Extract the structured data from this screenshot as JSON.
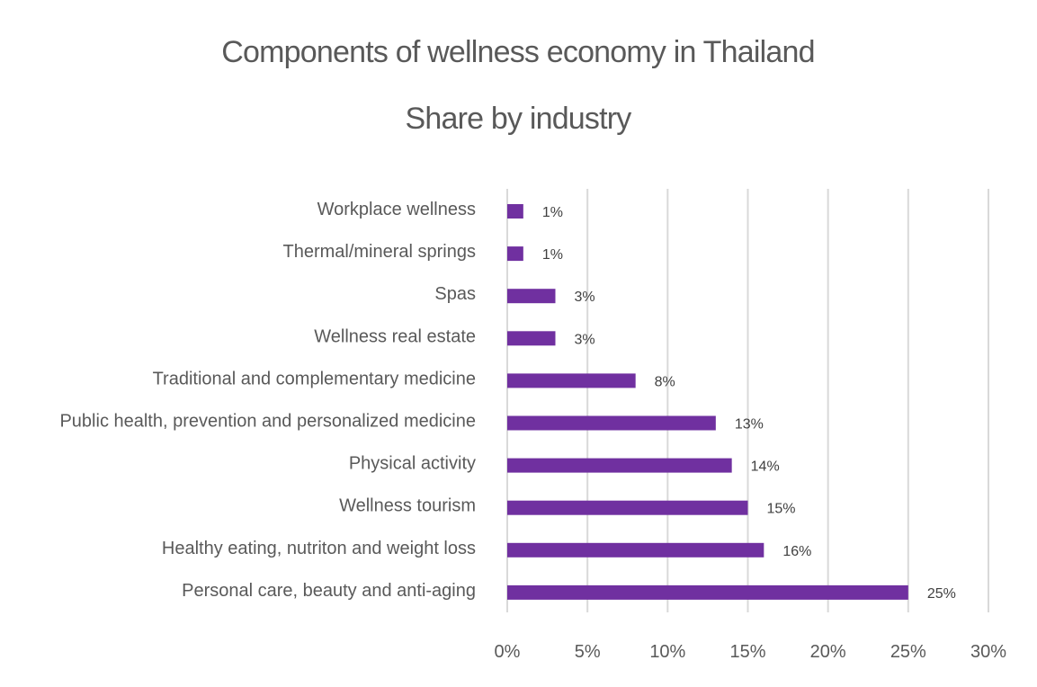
{
  "chart_data": {
    "type": "bar",
    "orientation": "horizontal",
    "title": "Components of wellness economy in Thailand",
    "subtitle": "Share by industry",
    "categories": [
      "Workplace wellness",
      "Thermal/mineral springs",
      "Spas",
      "Wellness real estate",
      "Traditional and complementary medicine",
      "Public health, prevention and personalized medicine",
      "Physical activity",
      "Wellness tourism",
      "Healthy eating, nutriton and weight loss",
      "Personal care, beauty and anti-aging"
    ],
    "values": [
      1,
      1,
      3,
      3,
      8,
      13,
      14,
      15,
      16,
      25
    ],
    "data_labels": [
      "1%",
      "1%",
      "3%",
      "3%",
      "8%",
      "13%",
      "14%",
      "15%",
      "16%",
      "25%"
    ],
    "xlim": [
      0,
      30
    ],
    "xticks": [
      0,
      5,
      10,
      15,
      20,
      25,
      30
    ],
    "xtick_labels": [
      "0%",
      "5%",
      "10%",
      "15%",
      "20%",
      "25%",
      "30%"
    ],
    "xlabel": "",
    "ylabel": "",
    "grid": "vertical",
    "legend": "none",
    "colors": {
      "bar": "#7030a0",
      "grid": "#d9d9d9",
      "text": "#595959",
      "data_label": "#404040"
    }
  }
}
